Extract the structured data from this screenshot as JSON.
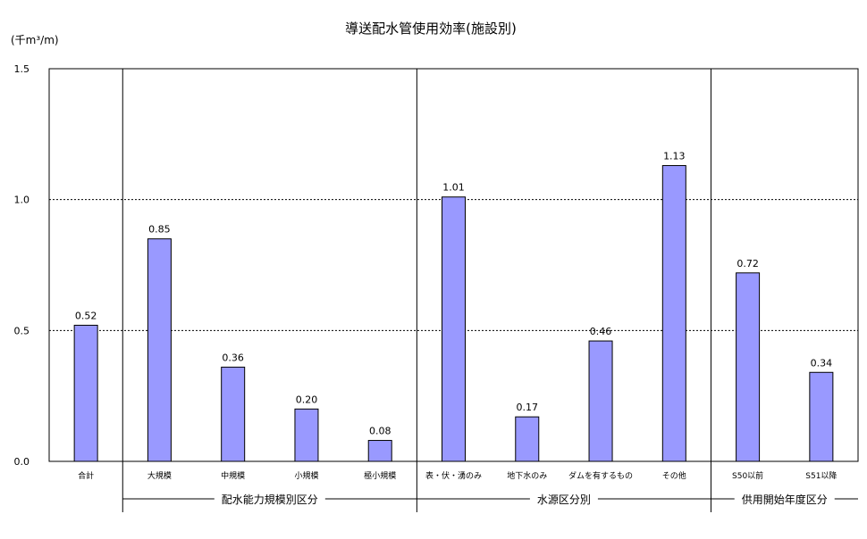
{
  "chart_data": {
    "type": "bar",
    "title": "導送配水管使用効率(施設別)",
    "unit_label": "(千m³/m)",
    "ylim": [
      0,
      1.5
    ],
    "yticks": [
      "0.0",
      "0.5",
      "1.0",
      "1.5"
    ],
    "grid": "dashed-horizontal",
    "bar_color": "#9999ff",
    "categories": [
      "合計",
      "大規模",
      "中規模",
      "小規模",
      "極小規模",
      "表・伏・湧のみ",
      "地下水のみ",
      "ダムを有するもの",
      "その他",
      "S50以前",
      "S51以降"
    ],
    "values": [
      0.52,
      0.85,
      0.36,
      0.2,
      0.08,
      1.01,
      0.17,
      0.46,
      1.13,
      0.72,
      0.34
    ],
    "data_labels": [
      "0.52",
      "0.85",
      "0.36",
      "0.20",
      "0.08",
      "1.01",
      "0.17",
      "0.46",
      "1.13",
      "0.72",
      "0.34"
    ],
    "groups": [
      {
        "label": "配水能力規模別区分",
        "start": 1,
        "end": 4
      },
      {
        "label": "水源区分別",
        "start": 5,
        "end": 8
      },
      {
        "label": "供用開始年度区分",
        "start": 9,
        "end": 10
      }
    ]
  }
}
